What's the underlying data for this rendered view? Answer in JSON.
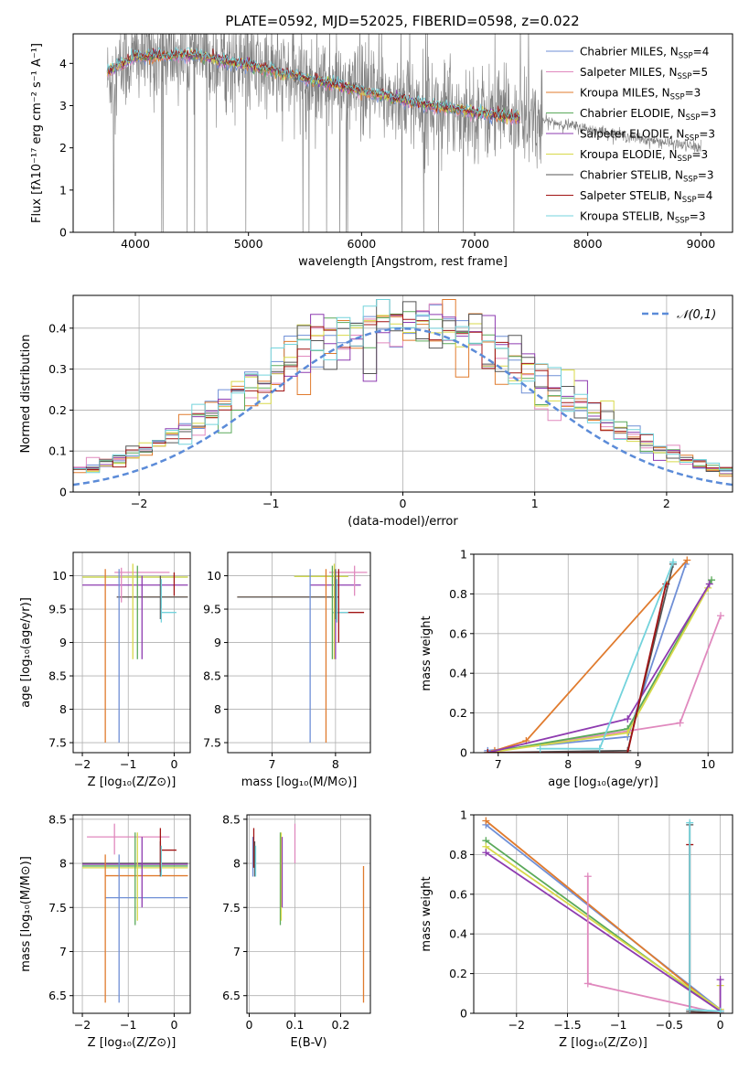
{
  "figure_title": "PLATE=0592, MJD=52025, FIBERID=0598, z=0.022",
  "colors": {
    "Chabrier MILES": "#6f8fd6",
    "Salpeter MILES": "#e089be",
    "Kroupa MILES": "#e07b2e",
    "Chabrier ELODIE": "#5aa95a",
    "Salpeter ELODIE": "#8e3bb0",
    "Kroupa ELODIE": "#d8d94a",
    "Chabrier STELIB": "#555555",
    "Salpeter STELIB": "#a01414",
    "Kroupa STELIB": "#73d3dc",
    "data": "#808080",
    "normal": "#5b8bd8"
  },
  "chart_data": [
    {
      "id": "spectrum",
      "type": "line",
      "xlabel": "wavelength [Angstrom, rest frame]",
      "ylabel": "Flux [fλ10⁻¹⁷ erg cm⁻² s⁻¹ A⁻¹]",
      "xlim": [
        3450,
        9280
      ],
      "ylim": [
        0,
        4.7
      ],
      "xticks": [
        4000,
        5000,
        6000,
        7000,
        8000,
        9000
      ],
      "yticks": [
        0,
        1,
        2,
        3,
        4
      ],
      "data_trend": {
        "x": [
          3750,
          4000,
          4500,
          5000,
          5500,
          6000,
          6500,
          7000,
          7500,
          8000,
          8500,
          9000
        ],
        "y": [
          3.6,
          4.15,
          4.2,
          3.9,
          3.6,
          3.3,
          3.05,
          2.85,
          2.7,
          2.45,
          2.2,
          2.0
        ]
      },
      "model_trend": {
        "x": [
          3750,
          4000,
          4500,
          5000,
          5500,
          6000,
          6500,
          7000,
          7400
        ],
        "y": [
          3.8,
          4.15,
          4.2,
          3.95,
          3.65,
          3.35,
          3.05,
          2.85,
          2.7
        ]
      },
      "legend": [
        {
          "name": "Chabrier MILES",
          "nssp": "4"
        },
        {
          "name": "Salpeter MILES",
          "nssp": "5"
        },
        {
          "name": "Kroupa MILES",
          "nssp": "3"
        },
        {
          "name": "Chabrier ELODIE",
          "nssp": "3"
        },
        {
          "name": "Salpeter ELODIE",
          "nssp": "3"
        },
        {
          "name": "Kroupa ELODIE",
          "nssp": "3"
        },
        {
          "name": "Chabrier STELIB",
          "nssp": "3"
        },
        {
          "name": "Salpeter STELIB",
          "nssp": "4"
        },
        {
          "name": "Kroupa STELIB",
          "nssp": "3"
        }
      ],
      "legend_placement": "upper right"
    },
    {
      "id": "residuals",
      "type": "histogram",
      "xlabel": "(data-model)/error",
      "ylabel": "Normed distribution",
      "xlim": [
        -2.5,
        2.5
      ],
      "ylim": [
        0,
        0.48
      ],
      "xticks": [
        -2,
        -1,
        0,
        1,
        2
      ],
      "yticks": [
        0.0,
        0.1,
        0.2,
        0.3,
        0.4
      ],
      "normal_legend": "𝒩(0,1)",
      "legend_placement": "upper right",
      "grid": true
    },
    {
      "id": "age_vs_Z",
      "type": "errorbar",
      "xlabel": "Z [log₁₀(Z/Z⊙)]",
      "ylabel": "age  [log₁₀(age/yr)]",
      "xlim": [
        -2.2,
        0.35
      ],
      "ylim": [
        7.35,
        10.35
      ],
      "xticks": [
        -2,
        -1,
        0
      ],
      "yticks": [
        7.5,
        8.0,
        8.5,
        9.0,
        9.5,
        10.0
      ],
      "grid": true,
      "hlines": [
        {
          "series": "Salpeter MILES",
          "y": 10.05,
          "x": [
            -1.3,
            -0.1
          ]
        },
        {
          "series": "Chabrier ELODIE",
          "y": 9.98,
          "x": [
            -2.0,
            0.3
          ]
        },
        {
          "series": "Kroupa ELODIE",
          "y": 9.98,
          "x": [
            -2.0,
            0.3
          ]
        },
        {
          "series": "Salpeter ELODIE",
          "y": 9.86,
          "x": [
            -2.0,
            0.3
          ]
        },
        {
          "series": "Kroupa MILES",
          "y": 9.68,
          "x": [
            -1.25,
            0.3
          ]
        },
        {
          "series": "Chabrier STELIB",
          "y": 9.68,
          "x": [
            -1.25,
            0.3
          ]
        },
        {
          "series": "Kroupa STELIB",
          "y": 9.45,
          "x": [
            -0.3,
            0.05
          ]
        }
      ],
      "vlines": [
        {
          "series": "Kroupa MILES",
          "x": -1.5,
          "y": [
            7.5,
            10.1
          ]
        },
        {
          "series": "Chabrier MILES",
          "x": -1.2,
          "y": [
            7.5,
            10.1
          ]
        },
        {
          "series": "Salpeter MILES",
          "x": -1.15,
          "y": [
            9.6,
            10.12
          ]
        },
        {
          "series": "Kroupa ELODIE",
          "x": -0.9,
          "y": [
            8.75,
            10.18
          ]
        },
        {
          "series": "Chabrier ELODIE",
          "x": -0.8,
          "y": [
            8.75,
            10.15
          ]
        },
        {
          "series": "Salpeter ELODIE",
          "x": -0.7,
          "y": [
            8.75,
            10.0
          ]
        },
        {
          "series": "Chabrier STELIB",
          "x": -0.3,
          "y": [
            9.35,
            10.0
          ]
        },
        {
          "series": "Kroupa STELIB",
          "x": -0.28,
          "y": [
            9.3,
            9.95
          ]
        },
        {
          "series": "Salpeter STELIB",
          "x": 0.0,
          "y": [
            9.7,
            10.05
          ]
        }
      ]
    },
    {
      "id": "age_vs_mass",
      "type": "errorbar",
      "xlabel": "mass [log₁₀(M/M⊙)]",
      "ylabel": "",
      "xlim": [
        6.3,
        8.55
      ],
      "ylim": [
        7.35,
        10.35
      ],
      "xticks": [
        7,
        8
      ],
      "yticks": [
        7.5,
        8.0,
        8.5,
        9.0,
        9.5,
        10.0
      ],
      "grid": true,
      "hlines": [
        {
          "series": "Salpeter MILES",
          "y": 10.05,
          "x": [
            7.9,
            8.5
          ]
        },
        {
          "series": "Chabrier ELODIE",
          "y": 9.99,
          "x": [
            7.35,
            8.2
          ]
        },
        {
          "series": "Kroupa ELODIE",
          "y": 9.99,
          "x": [
            7.35,
            8.2
          ]
        },
        {
          "series": "Salpeter ELODIE",
          "y": 9.86,
          "x": [
            7.6,
            8.4
          ]
        },
        {
          "series": "Kroupa MILES",
          "y": 9.68,
          "x": [
            6.45,
            8.05
          ]
        },
        {
          "series": "Chabrier STELIB",
          "y": 9.68,
          "x": [
            6.45,
            8.05
          ]
        },
        {
          "series": "Salpeter STELIB",
          "y": 9.45,
          "x": [
            7.95,
            8.45
          ]
        },
        {
          "series": "Kroupa STELIB",
          "y": 9.45,
          "x": [
            7.95,
            8.2
          ]
        }
      ],
      "vlines": [
        {
          "series": "Chabrier MILES",
          "x": 7.6,
          "y": [
            7.5,
            10.1
          ]
        },
        {
          "series": "Kroupa MILES",
          "x": 7.85,
          "y": [
            7.5,
            10.1
          ]
        },
        {
          "series": "Chabrier ELODIE",
          "x": 7.95,
          "y": [
            8.75,
            10.15
          ]
        },
        {
          "series": "Kroupa ELODIE",
          "x": 7.98,
          "y": [
            8.75,
            10.18
          ]
        },
        {
          "series": "Salpeter ELODIE",
          "x": 8.0,
          "y": [
            8.75,
            10.0
          ]
        },
        {
          "series": "Chabrier STELIB",
          "x": 8.0,
          "y": [
            9.35,
            10.1
          ]
        },
        {
          "series": "Kroupa STELIB",
          "x": 8.02,
          "y": [
            9.3,
            9.95
          ]
        },
        {
          "series": "Salpeter STELIB",
          "x": 8.05,
          "y": [
            9.0,
            10.1
          ]
        },
        {
          "series": "Salpeter MILES",
          "x": 8.3,
          "y": [
            9.7,
            10.15
          ]
        }
      ]
    },
    {
      "id": "weight_vs_age",
      "type": "line",
      "xlabel": "age  [log₁₀(age/yr)]",
      "ylabel": "mass weight",
      "xlim": [
        6.65,
        10.35
      ],
      "ylim": [
        0,
        1.0
      ],
      "xticks": [
        7,
        8,
        9,
        10
      ],
      "yticks": [
        0.0,
        0.2,
        0.4,
        0.6,
        0.8,
        1.0
      ],
      "grid": true,
      "series": [
        {
          "name": "Chabrier MILES",
          "x": [
            6.85,
            8.85,
            9.68
          ],
          "y": [
            0.01,
            0.08,
            0.95
          ]
        },
        {
          "name": "Kroupa MILES",
          "x": [
            6.95,
            7.4,
            9.7
          ],
          "y": [
            0.01,
            0.06,
            0.97
          ]
        },
        {
          "name": "Salpeter MILES",
          "x": [
            6.85,
            9.6,
            10.18
          ],
          "y": [
            0.0,
            0.15,
            0.69
          ]
        },
        {
          "name": "Chabrier ELODIE",
          "x": [
            6.85,
            8.85,
            10.05
          ],
          "y": [
            0.0,
            0.12,
            0.87
          ]
        },
        {
          "name": "Kroupa ELODIE",
          "x": [
            6.85,
            8.85,
            10.0
          ],
          "y": [
            0.0,
            0.1,
            0.83
          ]
        },
        {
          "name": "Salpeter ELODIE",
          "x": [
            6.85,
            8.85,
            10.02
          ],
          "y": [
            0.0,
            0.17,
            0.85
          ]
        },
        {
          "name": "Chabrier STELIB",
          "x": [
            6.85,
            8.85,
            9.5
          ],
          "y": [
            0.0,
            0.01,
            0.95
          ]
        },
        {
          "name": "Salpeter STELIB",
          "x": [
            6.85,
            8.85,
            9.4
          ],
          "y": [
            0.0,
            0.0,
            0.85
          ]
        },
        {
          "name": "Kroupa STELIB",
          "x": [
            7.6,
            8.45,
            9.5
          ],
          "y": [
            0.02,
            0.02,
            0.96
          ]
        }
      ]
    },
    {
      "id": "mass_vs_Z",
      "type": "errorbar",
      "xlabel": "Z [log₁₀(Z/Z⊙)]",
      "ylabel": "mass [log₁₀(M/M⊙)]",
      "xlim": [
        -2.2,
        0.35
      ],
      "ylim": [
        6.3,
        8.55
      ],
      "xticks": [
        -2,
        -1,
        0
      ],
      "yticks": [
        6.5,
        7.0,
        7.5,
        8.0,
        8.5
      ],
      "grid": true,
      "hlines": [
        {
          "series": "Salpeter MILES",
          "y": 8.3,
          "x": [
            -1.9,
            -0.1
          ]
        },
        {
          "series": "Salpeter STELIB",
          "y": 8.15,
          "x": [
            -0.3,
            0.05
          ]
        },
        {
          "series": "Chabrier STELIB",
          "y": 8.0,
          "x": [
            -2.0,
            0.3
          ]
        },
        {
          "series": "Salpeter ELODIE",
          "y": 7.99,
          "x": [
            -2.0,
            0.3
          ]
        },
        {
          "series": "Chabrier ELODIE",
          "y": 7.97,
          "x": [
            -2.0,
            0.3
          ]
        },
        {
          "series": "Kroupa ELODIE",
          "y": 7.95,
          "x": [
            -2.0,
            0.3
          ]
        },
        {
          "series": "Kroupa MILES",
          "y": 7.86,
          "x": [
            -1.5,
            0.3
          ]
        },
        {
          "series": "Chabrier MILES",
          "y": 7.61,
          "x": [
            -1.5,
            0.3
          ]
        }
      ],
      "vlines": [
        {
          "series": "Kroupa MILES",
          "x": -1.5,
          "y": [
            6.42,
            8.1
          ]
        },
        {
          "series": "Chabrier MILES",
          "x": -1.2,
          "y": [
            6.42,
            8.1
          ]
        },
        {
          "series": "Salpeter MILES",
          "x": -1.3,
          "y": [
            8.1,
            8.45
          ]
        },
        {
          "series": "Chabrier ELODIE",
          "x": -0.85,
          "y": [
            7.3,
            8.35
          ]
        },
        {
          "series": "Kroupa ELODIE",
          "x": -0.8,
          "y": [
            7.35,
            8.35
          ]
        },
        {
          "series": "Salpeter ELODIE",
          "x": -0.7,
          "y": [
            7.5,
            8.3
          ]
        },
        {
          "series": "Chabrier STELIB",
          "x": -0.3,
          "y": [
            7.85,
            8.25
          ]
        },
        {
          "series": "Salpeter STELIB",
          "x": -0.3,
          "y": [
            7.9,
            8.4
          ]
        },
        {
          "series": "Kroupa STELIB",
          "x": -0.28,
          "y": [
            7.85,
            8.2
          ]
        }
      ]
    },
    {
      "id": "mass_vs_ebv",
      "type": "errorbar",
      "xlabel": "E(B-V)",
      "ylabel": "",
      "xlim": [
        -0.005,
        0.265
      ],
      "ylim": [
        6.3,
        8.55
      ],
      "xticks": [
        0.0,
        0.1,
        0.2
      ],
      "yticks": [
        6.5,
        7.0,
        7.5,
        8.0,
        8.5
      ],
      "grid": true,
      "vlines": [
        {
          "series": "Chabrier MILES",
          "x": 0.008,
          "y": [
            7.85,
            8.3
          ]
        },
        {
          "series": "Salpeter STELIB",
          "x": 0.01,
          "y": [
            7.95,
            8.4
          ]
        },
        {
          "series": "Chabrier STELIB",
          "x": 0.012,
          "y": [
            7.85,
            8.25
          ]
        },
        {
          "series": "Kroupa STELIB",
          "x": 0.014,
          "y": [
            7.85,
            8.2
          ]
        },
        {
          "series": "Chabrier ELODIE",
          "x": 0.068,
          "y": [
            7.3,
            8.35
          ]
        },
        {
          "series": "Kroupa ELODIE",
          "x": 0.07,
          "y": [
            7.35,
            8.35
          ]
        },
        {
          "series": "Salpeter ELODIE",
          "x": 0.072,
          "y": [
            7.5,
            8.3
          ]
        },
        {
          "series": "Salpeter MILES",
          "x": 0.1,
          "y": [
            8.0,
            8.45
          ]
        },
        {
          "series": "Kroupa MILES",
          "x": 0.25,
          "y": [
            6.42,
            7.97
          ]
        }
      ]
    },
    {
      "id": "weight_vs_Z",
      "type": "line",
      "xlabel": "Z [log₁₀(Z/Z⊙)]",
      "ylabel": "mass weight",
      "xlim": [
        -2.42,
        0.12
      ],
      "ylim": [
        0,
        1.0
      ],
      "xticks": [
        -2.0,
        -1.5,
        -1.0,
        -0.5,
        0.0
      ],
      "yticks": [
        0.0,
        0.2,
        0.4,
        0.6,
        0.8,
        1.0
      ],
      "grid": true,
      "series": [
        {
          "name": "Chabrier MILES",
          "x": [
            -2.3,
            0.0
          ],
          "y": [
            0.95,
            0.02
          ]
        },
        {
          "name": "Kroupa MILES",
          "x": [
            -2.3,
            0.0
          ],
          "y": [
            0.97,
            0.01
          ]
        },
        {
          "name": "Chabrier ELODIE",
          "x": [
            -2.3,
            0.0
          ],
          "y": [
            0.87,
            0.01
          ]
        },
        {
          "name": "Kroupa ELODIE",
          "x": [
            -2.3,
            0.0,
            0.0
          ],
          "y": [
            0.84,
            0.02,
            0.14
          ]
        },
        {
          "name": "Salpeter ELODIE",
          "x": [
            -2.3,
            0.0,
            0.0
          ],
          "y": [
            0.81,
            0.01,
            0.17
          ]
        },
        {
          "name": "Salpeter MILES",
          "x": [
            -1.3,
            -1.3,
            0.0
          ],
          "y": [
            0.69,
            0.15,
            0.0
          ]
        },
        {
          "name": "Chabrier STELIB",
          "x": [
            -0.3,
            -0.3,
            0.0
          ],
          "y": [
            0.95,
            0.01,
            0.0
          ]
        },
        {
          "name": "Salpeter STELIB",
          "x": [
            -0.3,
            -0.3,
            0.0
          ],
          "y": [
            0.85,
            0.0,
            0.0
          ]
        },
        {
          "name": "Kroupa STELIB",
          "x": [
            -0.3,
            -0.3,
            0.0
          ],
          "y": [
            0.96,
            0.02,
            0.01
          ]
        }
      ]
    }
  ]
}
